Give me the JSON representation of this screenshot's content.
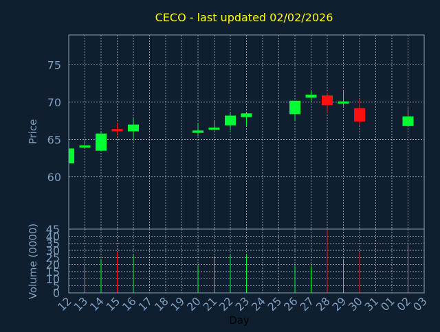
{
  "colors": {
    "background": "#0f1f30",
    "axis": "#8aa0b8",
    "grid": "#c8d0d8",
    "title": "#ffff00",
    "label": "#7f9fbf",
    "up": "#00ff33",
    "down": "#ff1010"
  },
  "chart_data": {
    "type": "candlestick",
    "title": "CECO - last updated 02/02/2026",
    "xlabel": "Day",
    "price_ylabel": "Price",
    "volume_ylabel": "Volume (0000)",
    "price_ylim": [
      53,
      79
    ],
    "price_ticks": [
      "60",
      "65",
      "70",
      "75"
    ],
    "volume_ylim": [
      0,
      45
    ],
    "volume_ticks": [
      "0",
      "5",
      "10",
      "15",
      "20",
      "25",
      "30",
      "35",
      "40",
      "45"
    ],
    "x_ticks": [
      "12",
      "13",
      "14",
      "15",
      "16",
      "17",
      "18",
      "19",
      "20",
      "21",
      "22",
      "23",
      "24",
      "25",
      "26",
      "27",
      "28",
      "29",
      "30",
      "31",
      "01",
      "02",
      "03"
    ],
    "grid": true,
    "candles": [
      {
        "day": "12",
        "open": 61.8,
        "high": 63.8,
        "low": 61.8,
        "close": 63.8,
        "volume": 0
      },
      {
        "day": "13",
        "open": 64.1,
        "high": 64.9,
        "low": 63.9,
        "close": 64.2,
        "volume": 20
      },
      {
        "day": "14",
        "open": 63.5,
        "high": 66.0,
        "low": 63.4,
        "close": 65.8,
        "volume": 24
      },
      {
        "day": "15",
        "open": 66.4,
        "high": 67.3,
        "low": 65.6,
        "close": 66.1,
        "volume": 29
      },
      {
        "day": "16",
        "open": 66.1,
        "high": 67.8,
        "low": 65.0,
        "close": 67.0,
        "volume": 27
      },
      {
        "day": "20",
        "open": 65.9,
        "high": 67.2,
        "low": 65.5,
        "close": 66.2,
        "volume": 19
      },
      {
        "day": "21",
        "open": 66.5,
        "high": 67.5,
        "low": 66.2,
        "close": 66.6,
        "volume": 26
      },
      {
        "day": "22",
        "open": 66.9,
        "high": 68.6,
        "low": 66.2,
        "close": 68.2,
        "volume": 27
      },
      {
        "day": "23",
        "open": 68.0,
        "high": 68.6,
        "low": 66.8,
        "close": 68.5,
        "volume": 27
      },
      {
        "day": "26",
        "open": 68.4,
        "high": 70.2,
        "low": 67.5,
        "close": 70.2,
        "volume": 19
      },
      {
        "day": "27",
        "open": 70.6,
        "high": 71.5,
        "low": 70.2,
        "close": 71.0,
        "volume": 19
      },
      {
        "day": "28",
        "open": 70.9,
        "high": 71.3,
        "low": 68.5,
        "close": 69.6,
        "volume": 45
      },
      {
        "day": "29",
        "open": 70.0,
        "high": 71.6,
        "low": 69.5,
        "close": 70.1,
        "volume": 24
      },
      {
        "day": "30",
        "open": 69.2,
        "high": 70.4,
        "low": 66.9,
        "close": 67.4,
        "volume": 29
      },
      {
        "day": "02",
        "open": 66.8,
        "high": 69.3,
        "low": 66.7,
        "close": 68.1,
        "volume": 35
      }
    ]
  }
}
